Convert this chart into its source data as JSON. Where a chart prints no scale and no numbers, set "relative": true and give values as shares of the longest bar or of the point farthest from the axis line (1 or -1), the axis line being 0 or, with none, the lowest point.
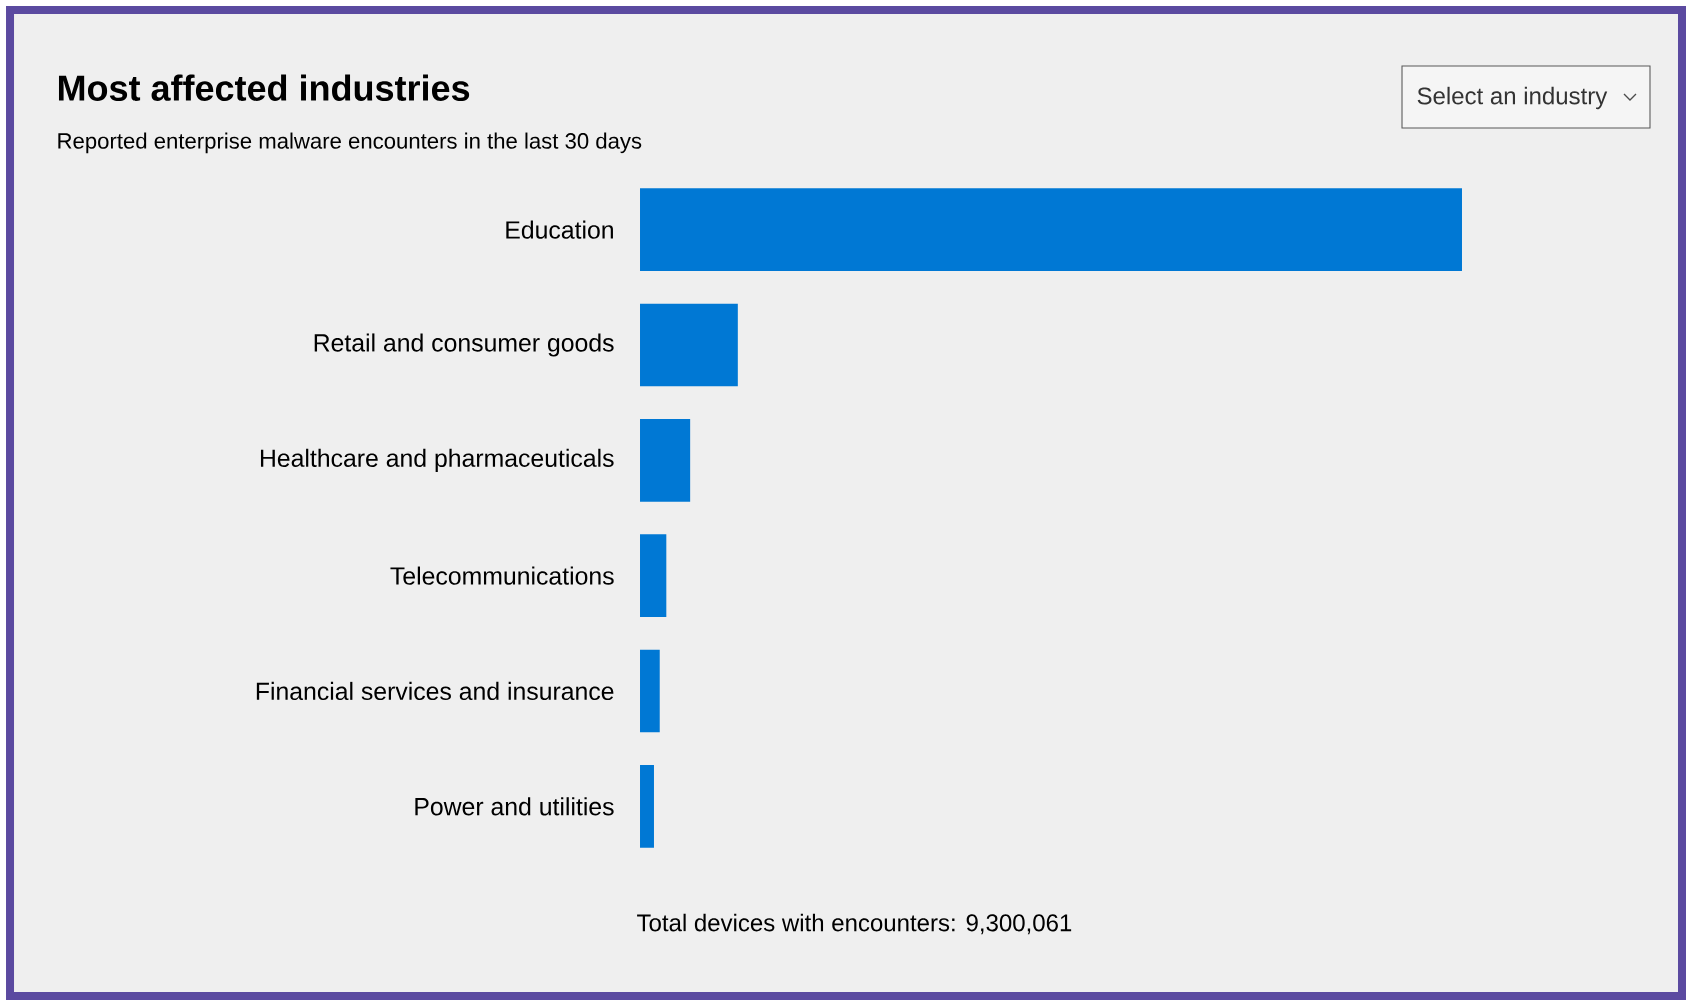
{
  "chart_data": {
    "type": "bar",
    "orientation": "horizontal",
    "relative": true,
    "title": "Most affected industries",
    "subtitle": "Reported enterprise malware encounters in the last 30 days",
    "categories": [
      "Education",
      "Retail and consumer goods",
      "Healthcare and pharmaceuticals",
      "Telecommunications",
      "Financial services and insurance",
      "Power and utilities"
    ],
    "values": [
      1,
      0.119,
      0.061,
      0.032,
      0.024,
      0.017
    ],
    "color": "#0078d4",
    "annotations": [
      "Total devices with encounters: 9,300,061",
      "Select an industry"
    ]
  }
}
